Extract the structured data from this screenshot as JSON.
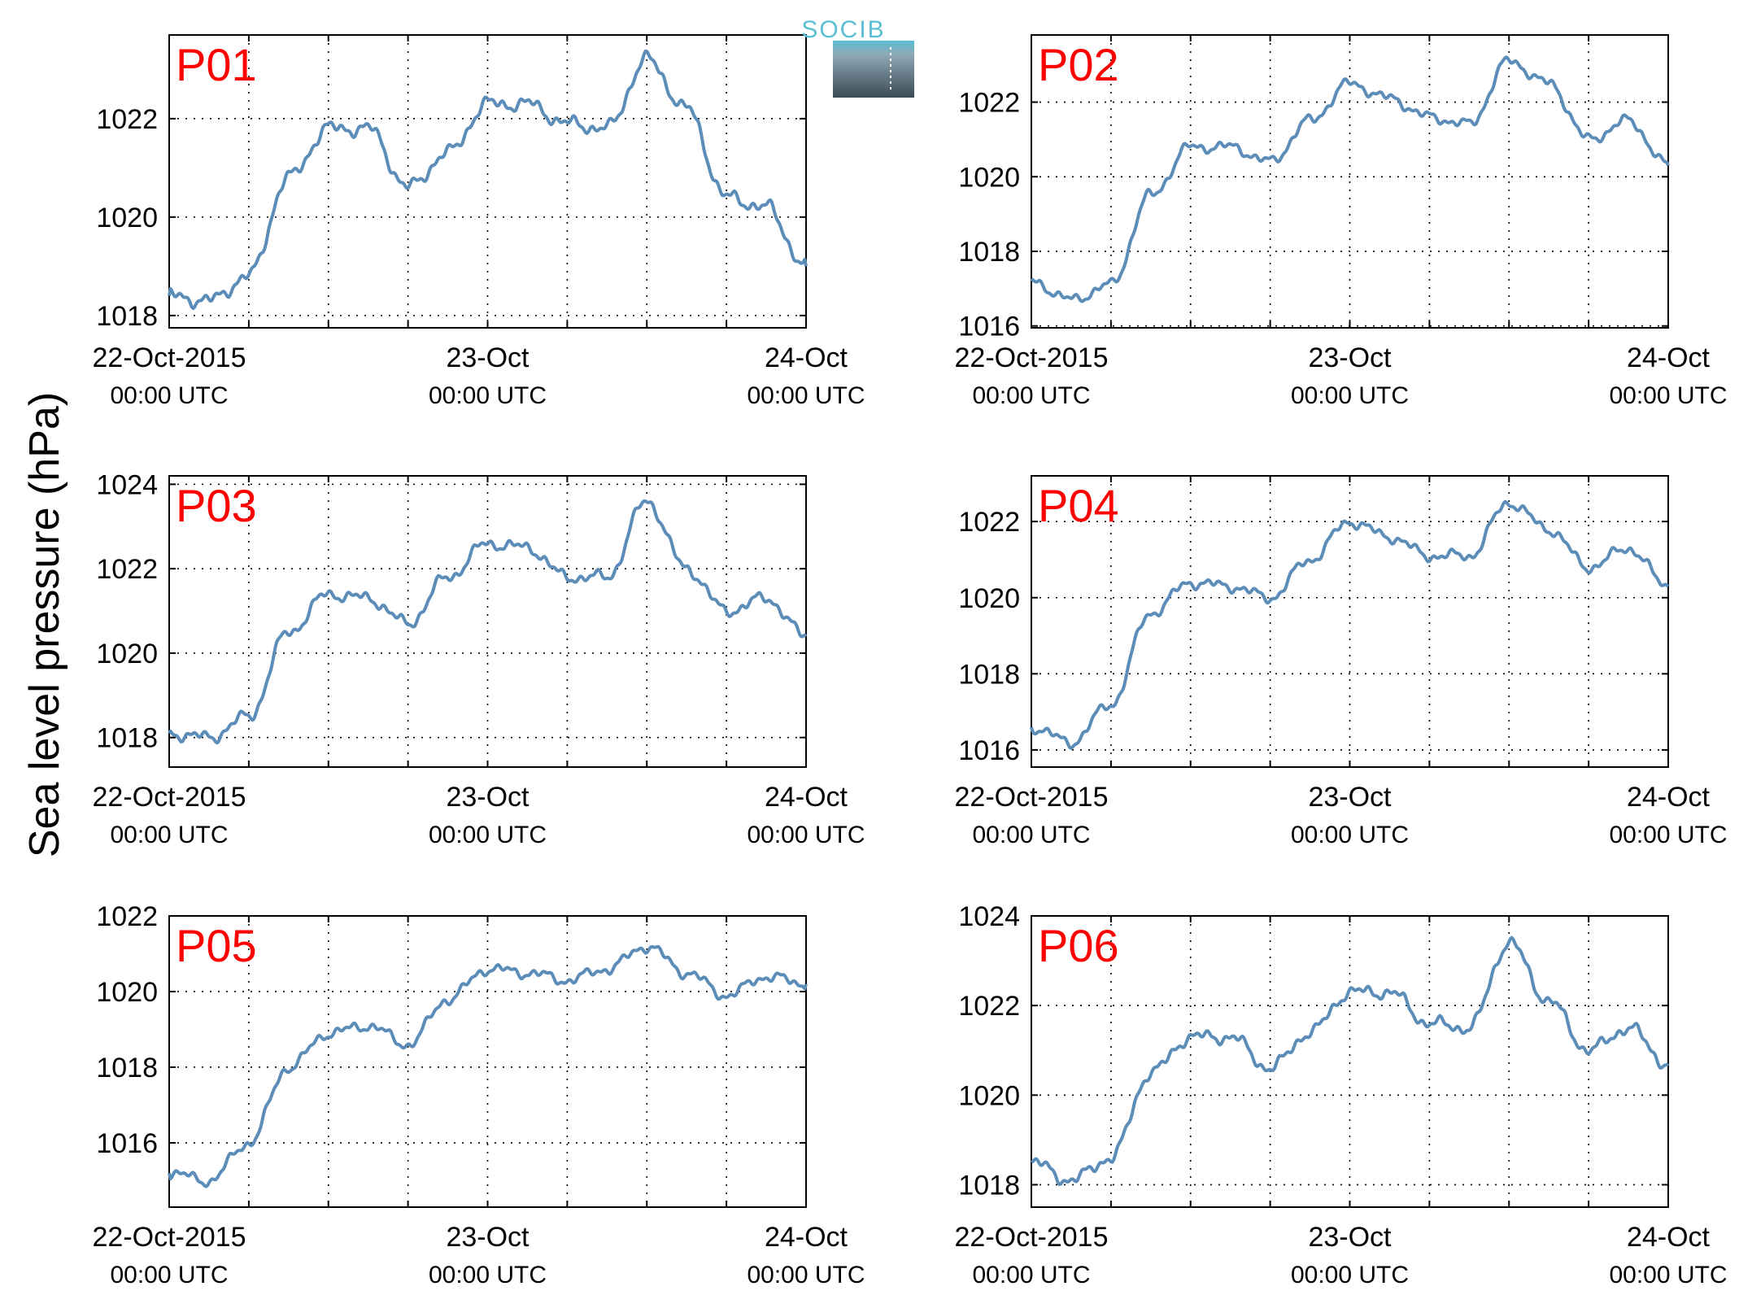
{
  "figure": {
    "ylabel": "Sea level pressure (hPa)",
    "logo_text": "SOCIB",
    "colors": {
      "line": "#5b8db8",
      "label": "#ff0000",
      "logo_top": "#5bbfd4",
      "logo_bottom": "#3a4a55"
    }
  },
  "chart_data": [
    {
      "type": "line",
      "title": "P01",
      "x": [
        "2015-10-22T00:00",
        "2015-10-22T03:00",
        "2015-10-22T06:00",
        "2015-10-22T09:00",
        "2015-10-22T12:00",
        "2015-10-22T15:00",
        "2015-10-22T18:00",
        "2015-10-22T21:00",
        "2015-10-23T00:00",
        "2015-10-23T03:00",
        "2015-10-23T06:00",
        "2015-10-23T09:00",
        "2015-10-23T12:00",
        "2015-10-23T15:00",
        "2015-10-23T18:00",
        "2015-10-23T21:00",
        "2015-10-24T00:00"
      ],
      "series": [
        {
          "values": [
            1018.4,
            1018.3,
            1018.8,
            1020.8,
            1021.8,
            1021.8,
            1020.6,
            1021.3,
            1022.3,
            1022.3,
            1021.9,
            1021.8,
            1023.2,
            1022.2,
            1020.4,
            1020.2,
            1019.0
          ]
        }
      ],
      "x_ticks": [
        "22-Oct-2015",
        "23-Oct",
        "24-Oct"
      ],
      "x_tick_sub": [
        "00:00 UTC",
        "00:00 UTC",
        "00:00 UTC"
      ],
      "y_ticks": [
        1018,
        1020,
        1022
      ],
      "ylim": [
        1017.75,
        1023.7
      ],
      "grid": true
    },
    {
      "type": "line",
      "title": "P02",
      "x": [
        "2015-10-22T00:00",
        "2015-10-22T03:00",
        "2015-10-22T06:00",
        "2015-10-22T09:00",
        "2015-10-22T12:00",
        "2015-10-22T15:00",
        "2015-10-22T18:00",
        "2015-10-22T21:00",
        "2015-10-23T00:00",
        "2015-10-23T03:00",
        "2015-10-23T06:00",
        "2015-10-23T09:00",
        "2015-10-23T12:00",
        "2015-10-23T15:00",
        "2015-10-23T18:00",
        "2015-10-23T21:00",
        "2015-10-24T00:00"
      ],
      "series": [
        {
          "values": [
            1017.2,
            1016.7,
            1017.1,
            1019.5,
            1020.8,
            1020.8,
            1020.4,
            1021.5,
            1022.5,
            1022.1,
            1021.6,
            1021.4,
            1023.1,
            1022.5,
            1021.0,
            1021.5,
            1020.3
          ]
        }
      ],
      "x_ticks": [
        "22-Oct-2015",
        "23-Oct",
        "24-Oct"
      ],
      "x_tick_sub": [
        "00:00 UTC",
        "00:00 UTC",
        "00:00 UTC"
      ],
      "y_ticks": [
        1016,
        1018,
        1020,
        1022
      ],
      "ylim": [
        1015.95,
        1023.8
      ],
      "grid": true
    },
    {
      "type": "line",
      "title": "P03",
      "x": [
        "2015-10-22T00:00",
        "2015-10-22T03:00",
        "2015-10-22T06:00",
        "2015-10-22T09:00",
        "2015-10-22T12:00",
        "2015-10-22T15:00",
        "2015-10-22T18:00",
        "2015-10-22T21:00",
        "2015-10-23T00:00",
        "2015-10-23T03:00",
        "2015-10-23T06:00",
        "2015-10-23T09:00",
        "2015-10-23T12:00",
        "2015-10-23T15:00",
        "2015-10-23T18:00",
        "2015-10-23T21:00",
        "2015-10-24T00:00"
      ],
      "series": [
        {
          "values": [
            1018.1,
            1018.0,
            1018.5,
            1020.5,
            1021.4,
            1021.3,
            1020.7,
            1021.8,
            1022.6,
            1022.5,
            1021.8,
            1021.8,
            1023.6,
            1022.0,
            1021.0,
            1021.3,
            1020.4
          ]
        }
      ],
      "x_ticks": [
        "22-Oct-2015",
        "23-Oct",
        "24-Oct"
      ],
      "x_tick_sub": [
        "00:00 UTC",
        "00:00 UTC",
        "00:00 UTC"
      ],
      "y_ticks": [
        1018,
        1020,
        1022,
        1024
      ],
      "ylim": [
        1017.3,
        1024.2
      ],
      "grid": true
    },
    {
      "type": "line",
      "title": "P04",
      "x": [
        "2015-10-22T00:00",
        "2015-10-22T03:00",
        "2015-10-22T06:00",
        "2015-10-22T09:00",
        "2015-10-22T12:00",
        "2015-10-22T15:00",
        "2015-10-22T18:00",
        "2015-10-22T21:00",
        "2015-10-23T00:00",
        "2015-10-23T03:00",
        "2015-10-23T06:00",
        "2015-10-23T09:00",
        "2015-10-23T12:00",
        "2015-10-23T15:00",
        "2015-10-23T18:00",
        "2015-10-23T21:00",
        "2015-10-24T00:00"
      ],
      "series": [
        {
          "values": [
            1016.6,
            1016.2,
            1017.2,
            1019.6,
            1020.4,
            1020.3,
            1020.0,
            1021.0,
            1022.0,
            1021.6,
            1021.1,
            1021.1,
            1022.5,
            1021.8,
            1020.8,
            1021.3,
            1020.3
          ]
        }
      ],
      "x_ticks": [
        "22-Oct-2015",
        "23-Oct",
        "24-Oct"
      ],
      "x_tick_sub": [
        "00:00 UTC",
        "00:00 UTC",
        "00:00 UTC"
      ],
      "y_ticks": [
        1016,
        1018,
        1020,
        1022
      ],
      "ylim": [
        1015.55,
        1023.2
      ],
      "grid": true
    },
    {
      "type": "line",
      "title": "P05",
      "x": [
        "2015-10-22T00:00",
        "2015-10-22T03:00",
        "2015-10-22T06:00",
        "2015-10-22T09:00",
        "2015-10-22T12:00",
        "2015-10-22T15:00",
        "2015-10-22T18:00",
        "2015-10-22T21:00",
        "2015-10-23T00:00",
        "2015-10-23T03:00",
        "2015-10-23T06:00",
        "2015-10-23T09:00",
        "2015-10-23T12:00",
        "2015-10-23T15:00",
        "2015-10-23T18:00",
        "2015-10-23T21:00",
        "2015-10-24T00:00"
      ],
      "series": [
        {
          "values": [
            1015.2,
            1015.0,
            1016.0,
            1018.0,
            1018.9,
            1019.1,
            1018.6,
            1019.8,
            1020.6,
            1020.5,
            1020.3,
            1020.6,
            1021.2,
            1020.5,
            1019.9,
            1020.4,
            1020.2
          ]
        }
      ],
      "x_ticks": [
        "22-Oct-2015",
        "23-Oct",
        "24-Oct"
      ],
      "x_tick_sub": [
        "00:00 UTC",
        "00:00 UTC",
        "00:00 UTC"
      ],
      "y_ticks": [
        1016,
        1018,
        1020,
        1022
      ],
      "ylim": [
        1014.3,
        1022.0
      ],
      "grid": true
    },
    {
      "type": "line",
      "title": "P06",
      "x": [
        "2015-10-22T00:00",
        "2015-10-22T03:00",
        "2015-10-22T06:00",
        "2015-10-22T09:00",
        "2015-10-22T12:00",
        "2015-10-22T15:00",
        "2015-10-22T18:00",
        "2015-10-22T21:00",
        "2015-10-23T00:00",
        "2015-10-23T03:00",
        "2015-10-23T06:00",
        "2015-10-23T09:00",
        "2015-10-23T12:00",
        "2015-10-23T15:00",
        "2015-10-23T18:00",
        "2015-10-23T21:00",
        "2015-10-24T00:00"
      ],
      "series": [
        {
          "values": [
            1018.5,
            1018.1,
            1018.6,
            1020.5,
            1021.3,
            1021.3,
            1020.6,
            1021.4,
            1022.3,
            1022.3,
            1021.6,
            1021.5,
            1023.4,
            1022.1,
            1021.0,
            1021.5,
            1020.7
          ]
        }
      ],
      "x_ticks": [
        "22-Oct-2015",
        "23-Oct",
        "24-Oct"
      ],
      "x_tick_sub": [
        "00:00 UTC",
        "00:00 UTC",
        "00:00 UTC"
      ],
      "y_ticks": [
        1018,
        1020,
        1022,
        1024
      ],
      "ylim": [
        1017.5,
        1024.0
      ],
      "grid": true
    }
  ]
}
